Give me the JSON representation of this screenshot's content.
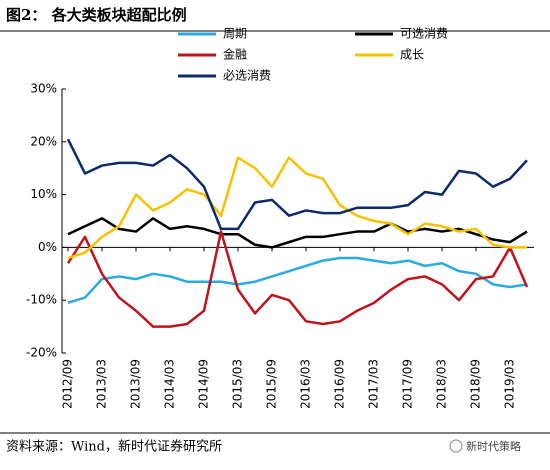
{
  "title": "图2： 各大类板块超配比例",
  "source": "资料来源：Wind，新时代证券研究所",
  "watermark": "新时代策略",
  "chart_data": {
    "type": "line",
    "categories": [
      "2012/09",
      null,
      "2013/03",
      null,
      "2013/09",
      null,
      "2014/03",
      null,
      "2014/09",
      null,
      "2015/03",
      null,
      "2015/09",
      null,
      "2016/03",
      null,
      "2016/09",
      null,
      "2017/03",
      null,
      "2017/09",
      null,
      "2018/03",
      null,
      "2018/09",
      null,
      "2019/03",
      null
    ],
    "series": [
      {
        "name": "周期",
        "color": "#29aae1",
        "values": [
          -10.5,
          -9.5,
          -6,
          -5.5,
          -6,
          -5,
          -5.5,
          -6.5,
          -6.5,
          -6.5,
          -7,
          -6.5,
          -5.5,
          -4.5,
          -3.5,
          -2.5,
          -2,
          -2,
          -2.5,
          -3,
          -2.5,
          -3.5,
          -3,
          -4.5,
          -5,
          -7,
          -7.5,
          -7
        ]
      },
      {
        "name": "可选消费",
        "color": "#000000",
        "values": [
          2.5,
          4,
          5.5,
          3.5,
          3,
          5.5,
          3.5,
          4,
          3.5,
          2.5,
          2.5,
          0.5,
          0,
          1,
          2,
          2,
          2.5,
          3,
          3,
          4.5,
          3,
          3.5,
          3,
          3.5,
          2.5,
          1.5,
          1,
          3
        ]
      },
      {
        "name": "金融",
        "color": "#c0141c",
        "values": [
          -3,
          2,
          -5,
          -9.5,
          -12,
          -15,
          -15,
          -14.5,
          -12,
          3,
          -8,
          -12.5,
          -9,
          -10,
          -14,
          -14.5,
          -14,
          -12,
          -10.5,
          -8,
          -6,
          -5.5,
          -7,
          -10,
          -6,
          -5.5,
          0,
          -7.5
        ]
      },
      {
        "name": "成长",
        "color": "#f7c100",
        "values": [
          -2,
          -1,
          2,
          4,
          10,
          7,
          8.5,
          11,
          10,
          6,
          17,
          15,
          11.5,
          17,
          14,
          13,
          8,
          6,
          5,
          4.5,
          2.5,
          4.5,
          4,
          3,
          3.5,
          0.5,
          0,
          0
        ]
      },
      {
        "name": "必选消费",
        "color": "#0d2a6b",
        "values": [
          20.5,
          14,
          15.5,
          16,
          16,
          15.5,
          17.5,
          15,
          11.5,
          3.5,
          3.5,
          8.5,
          9,
          6,
          7,
          6.5,
          6.5,
          7.5,
          7.5,
          7.5,
          8,
          10.5,
          10,
          14.5,
          14,
          11.5,
          13,
          16.5
        ]
      }
    ],
    "ylim": [
      -20,
      30
    ],
    "yticks": [
      {
        "value": -20,
        "label": "-20%"
      },
      {
        "value": -10,
        "label": "-10%"
      },
      {
        "value": 0,
        "label": "0%"
      },
      {
        "value": 10,
        "label": "10%"
      },
      {
        "value": 20,
        "label": "20%"
      },
      {
        "value": 30,
        "label": "30%"
      }
    ],
    "legend": "top"
  }
}
